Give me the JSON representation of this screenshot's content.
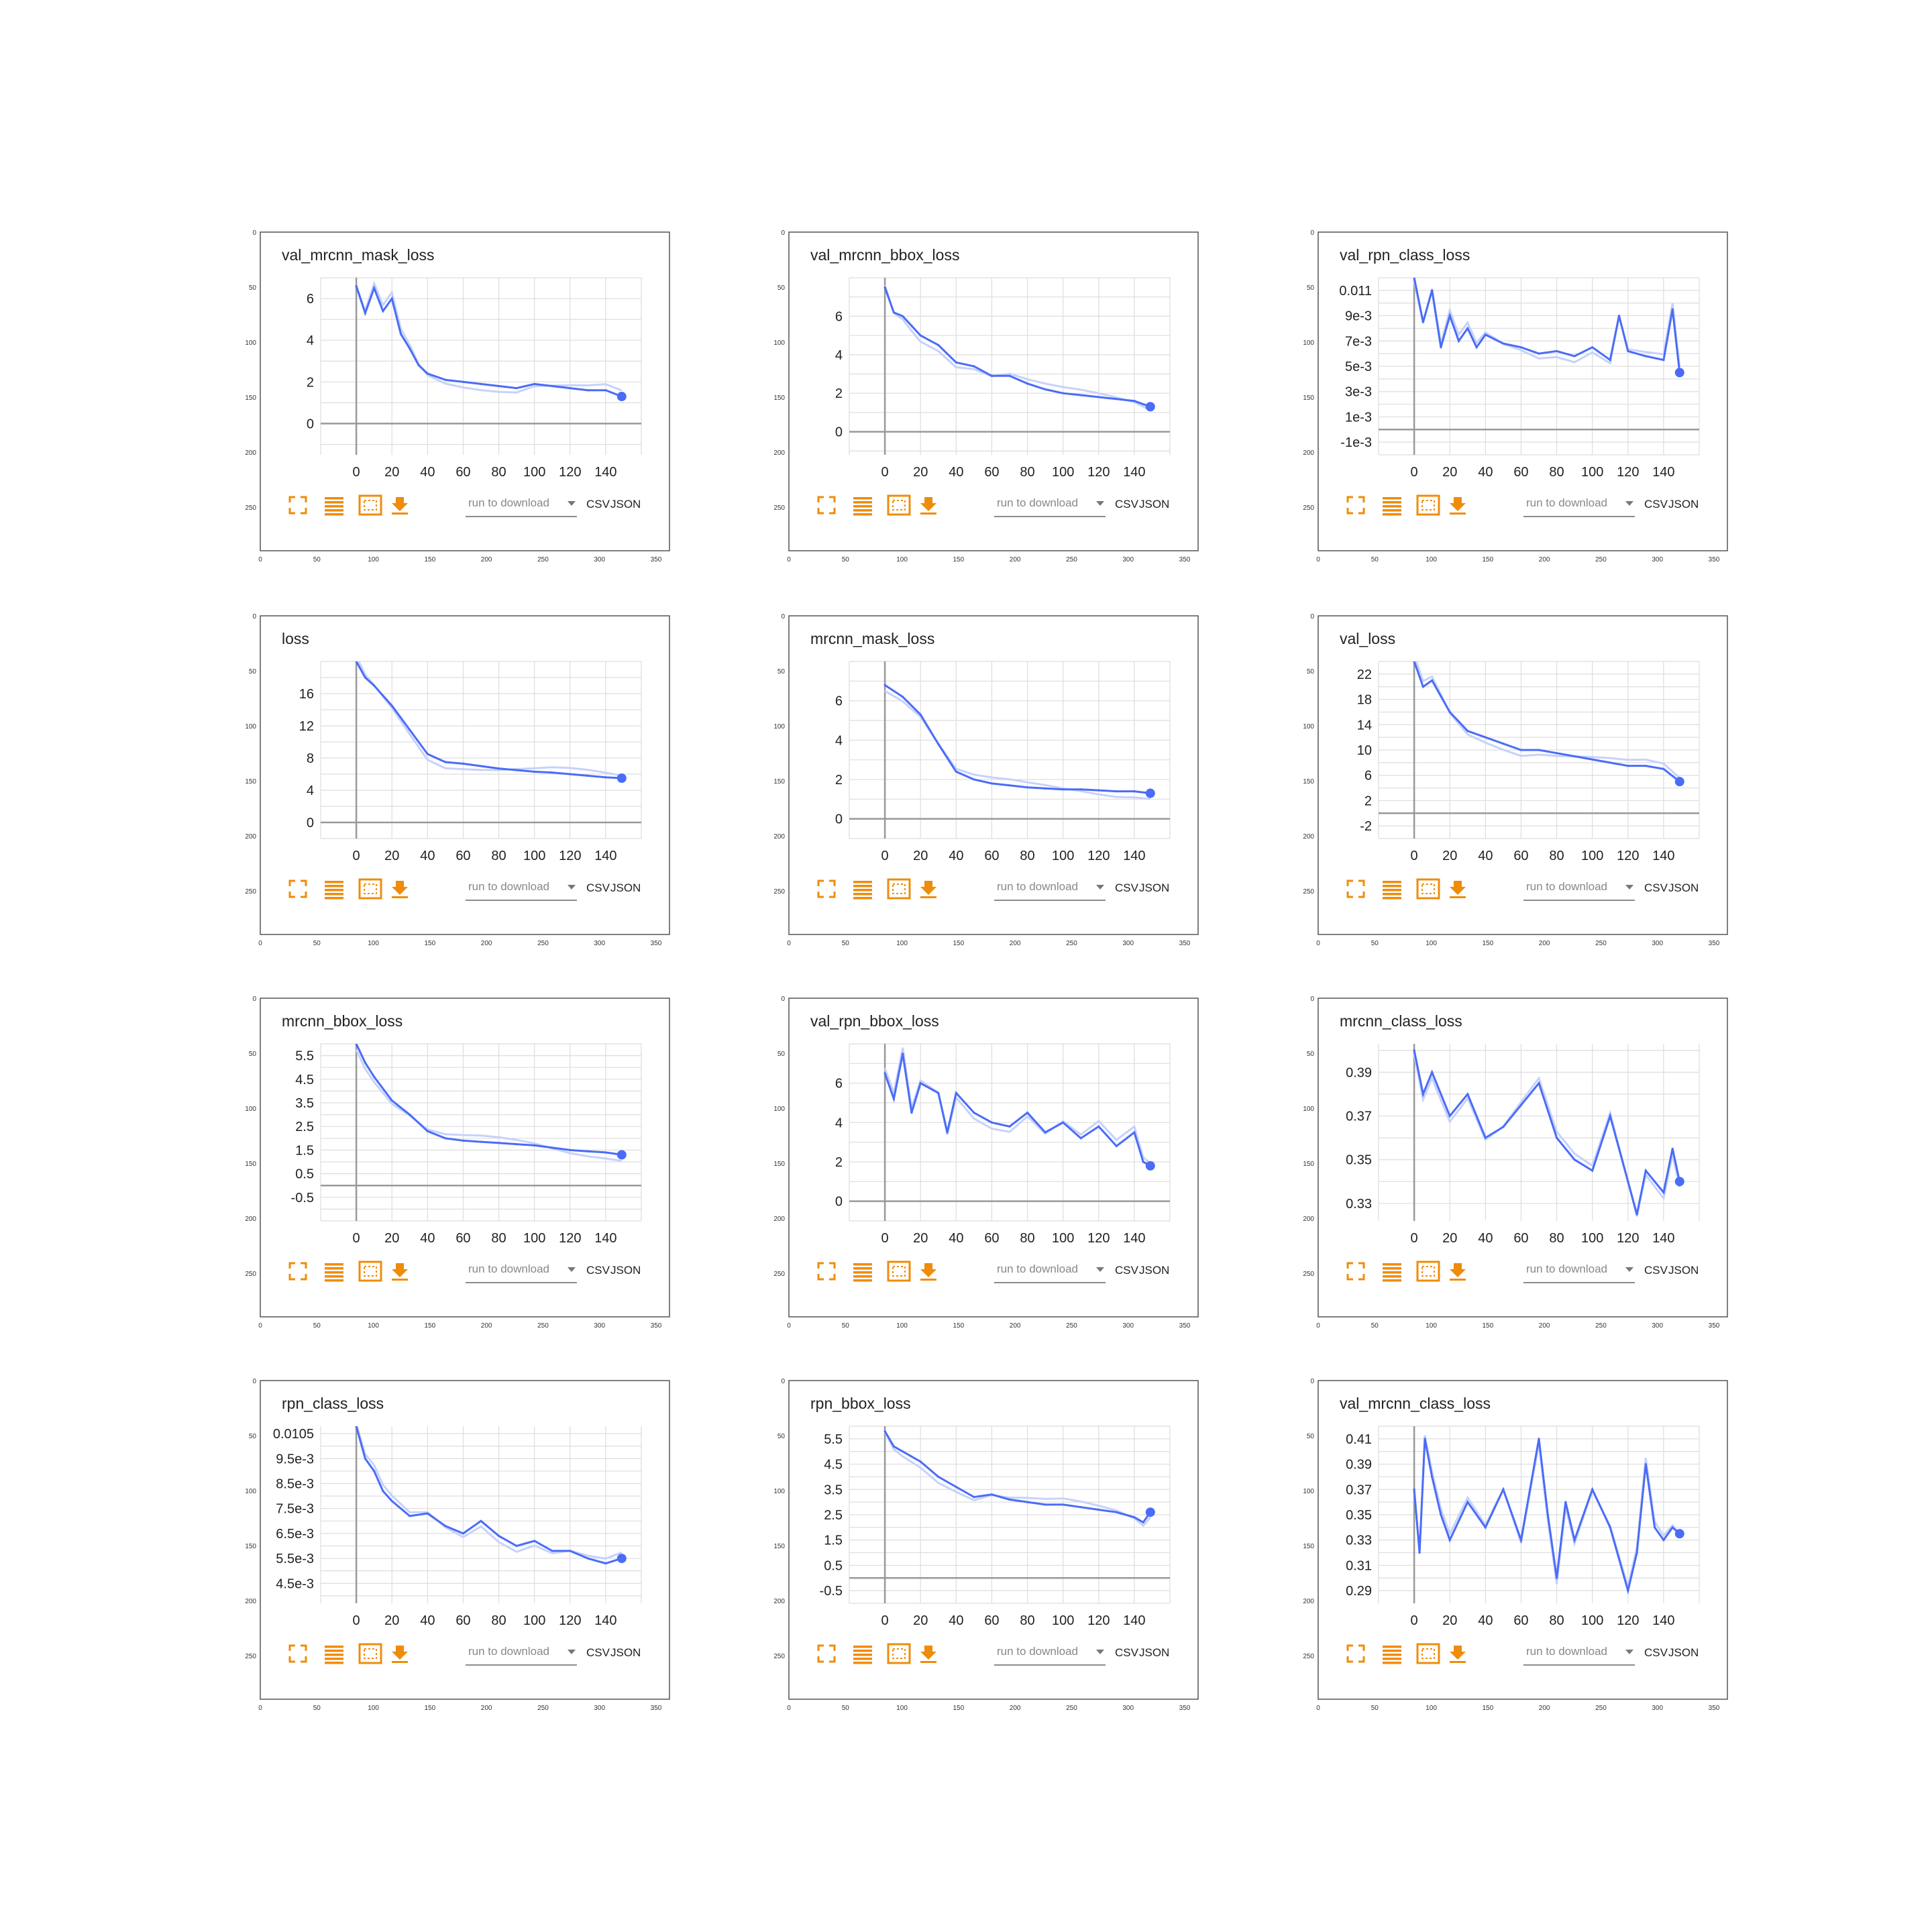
{
  "figure": {
    "outer_x_ticks": [
      "0",
      "50",
      "100",
      "150",
      "200",
      "250",
      "300",
      "350"
    ],
    "outer_y_ticks": [
      "0",
      "50",
      "100",
      "150",
      "200",
      "250"
    ],
    "download_placeholder": "run to download",
    "csv_label": "CSV",
    "json_label": "JSON",
    "icons": [
      "expand-icon",
      "lines-icon",
      "fit-domain-icon",
      "download-icon"
    ],
    "colors": {
      "line": "#4a6cf7",
      "line_faded": "#c6d2fb",
      "icon": "#ef8c0a",
      "grid": "#dddddd",
      "axis": "#999999"
    }
  },
  "chart_data": [
    {
      "type": "line",
      "title": "val_mrcnn_mask_loss",
      "xlim": [
        -20,
        160
      ],
      "ylim": [
        -1.5,
        7
      ],
      "yticks": [
        {
          "v": 0,
          "label": "0"
        },
        {
          "v": 2,
          "label": "2"
        },
        {
          "v": 4,
          "label": "4"
        },
        {
          "v": 6,
          "label": "6"
        }
      ],
      "xticks": [
        0,
        20,
        40,
        60,
        80,
        100,
        120,
        140
      ],
      "series": [
        {
          "x": [
            0,
            5,
            10,
            15,
            20,
            25,
            30,
            35,
            40,
            50,
            60,
            70,
            80,
            90,
            100,
            110,
            120,
            130,
            140,
            149
          ],
          "values": [
            6.6,
            5.3,
            6.5,
            5.4,
            6.0,
            4.3,
            3.6,
            2.8,
            2.4,
            2.1,
            2.0,
            1.9,
            1.8,
            1.7,
            1.9,
            1.8,
            1.7,
            1.6,
            1.6,
            1.3
          ]
        }
      ]
    },
    {
      "type": "line",
      "title": "val_mrcnn_bbox_loss",
      "xlim": [
        -20,
        160
      ],
      "ylim": [
        -1.2,
        8
      ],
      "yticks": [
        {
          "v": 0,
          "label": "0"
        },
        {
          "v": 2,
          "label": "2"
        },
        {
          "v": 4,
          "label": "4"
        },
        {
          "v": 6,
          "label": "6"
        }
      ],
      "xticks": [
        0,
        20,
        40,
        60,
        80,
        100,
        120,
        140
      ],
      "series": [
        {
          "x": [
            0,
            5,
            10,
            15,
            20,
            30,
            40,
            50,
            60,
            70,
            80,
            90,
            100,
            110,
            120,
            130,
            140,
            149
          ],
          "values": [
            7.5,
            6.2,
            6.0,
            5.5,
            5.0,
            4.5,
            3.6,
            3.4,
            2.9,
            2.9,
            2.5,
            2.2,
            2.0,
            1.9,
            1.8,
            1.7,
            1.6,
            1.3
          ]
        }
      ]
    },
    {
      "type": "line",
      "title": "val_rpn_class_loss",
      "xlim": [
        -20,
        160
      ],
      "ylim": [
        -0.002,
        0.012
      ],
      "yticks": [
        {
          "v": -0.001,
          "label": "-1e-3"
        },
        {
          "v": 0.001,
          "label": "1e-3"
        },
        {
          "v": 0.003,
          "label": "3e-3"
        },
        {
          "v": 0.005,
          "label": "5e-3"
        },
        {
          "v": 0.007,
          "label": "7e-3"
        },
        {
          "v": 0.009,
          "label": "9e-3"
        },
        {
          "v": 0.011,
          "label": "0.011"
        }
      ],
      "xticks": [
        0,
        20,
        40,
        60,
        80,
        100,
        120,
        140
      ],
      "series": [
        {
          "x": [
            0,
            5,
            10,
            15,
            20,
            25,
            30,
            35,
            40,
            50,
            60,
            70,
            80,
            90,
            100,
            110,
            115,
            120,
            130,
            140,
            145,
            149
          ],
          "values": [
            0.012,
            0.0085,
            0.011,
            0.0065,
            0.009,
            0.007,
            0.008,
            0.0065,
            0.0075,
            0.0068,
            0.0065,
            0.006,
            0.0062,
            0.0058,
            0.0065,
            0.0055,
            0.009,
            0.0062,
            0.0058,
            0.0055,
            0.0095,
            0.0045
          ]
        }
      ]
    },
    {
      "type": "line",
      "title": "loss",
      "xlim": [
        -20,
        160
      ],
      "ylim": [
        -2,
        20
      ],
      "yticks": [
        {
          "v": 0,
          "label": "0"
        },
        {
          "v": 4,
          "label": "4"
        },
        {
          "v": 8,
          "label": "8"
        },
        {
          "v": 12,
          "label": "12"
        },
        {
          "v": 16,
          "label": "16"
        }
      ],
      "xticks": [
        0,
        20,
        40,
        60,
        80,
        100,
        120,
        140
      ],
      "series": [
        {
          "x": [
            0,
            5,
            10,
            20,
            30,
            40,
            50,
            60,
            70,
            80,
            90,
            100,
            110,
            120,
            130,
            140,
            149
          ],
          "values": [
            20,
            18,
            17,
            14.5,
            11.5,
            8.5,
            7.5,
            7.3,
            7.0,
            6.7,
            6.5,
            6.3,
            6.2,
            6.0,
            5.8,
            5.6,
            5.5
          ]
        }
      ]
    },
    {
      "type": "line",
      "title": "mrcnn_mask_loss",
      "xlim": [
        -20,
        160
      ],
      "ylim": [
        -1,
        8
      ],
      "yticks": [
        {
          "v": 0,
          "label": "0"
        },
        {
          "v": 2,
          "label": "2"
        },
        {
          "v": 4,
          "label": "4"
        },
        {
          "v": 6,
          "label": "6"
        }
      ],
      "xticks": [
        0,
        20,
        40,
        60,
        80,
        100,
        120,
        140
      ],
      "series": [
        {
          "x": [
            0,
            10,
            20,
            30,
            40,
            50,
            60,
            70,
            80,
            90,
            100,
            110,
            120,
            130,
            140,
            149
          ],
          "values": [
            6.8,
            6.2,
            5.3,
            3.8,
            2.4,
            2.0,
            1.8,
            1.7,
            1.6,
            1.55,
            1.5,
            1.5,
            1.45,
            1.4,
            1.4,
            1.3
          ]
        }
      ]
    },
    {
      "type": "line",
      "title": "val_loss",
      "xlim": [
        -20,
        160
      ],
      "ylim": [
        -4,
        24
      ],
      "yticks": [
        {
          "v": -2,
          "label": "-2"
        },
        {
          "v": 2,
          "label": "2"
        },
        {
          "v": 6,
          "label": "6"
        },
        {
          "v": 10,
          "label": "10"
        },
        {
          "v": 14,
          "label": "14"
        },
        {
          "v": 18,
          "label": "18"
        },
        {
          "v": 22,
          "label": "22"
        }
      ],
      "xticks": [
        0,
        20,
        40,
        60,
        80,
        100,
        120,
        140
      ],
      "series": [
        {
          "x": [
            0,
            5,
            10,
            15,
            20,
            30,
            40,
            50,
            60,
            70,
            80,
            90,
            100,
            110,
            120,
            130,
            140,
            149
          ],
          "values": [
            24,
            20,
            21,
            18.5,
            16,
            13,
            12,
            11,
            10,
            10,
            9.5,
            9,
            8.5,
            8,
            7.5,
            7.5,
            7,
            5
          ]
        }
      ]
    },
    {
      "type": "line",
      "title": "mrcnn_bbox_loss",
      "xlim": [
        -20,
        160
      ],
      "ylim": [
        -1.5,
        6
      ],
      "yticks": [
        {
          "v": -0.5,
          "label": "-0.5"
        },
        {
          "v": 0.5,
          "label": "0.5"
        },
        {
          "v": 1.5,
          "label": "1.5"
        },
        {
          "v": 2.5,
          "label": "2.5"
        },
        {
          "v": 3.5,
          "label": "3.5"
        },
        {
          "v": 4.5,
          "label": "4.5"
        },
        {
          "v": 5.5,
          "label": "5.5"
        }
      ],
      "xticks": [
        0,
        20,
        40,
        60,
        80,
        100,
        120,
        140
      ],
      "series": [
        {
          "x": [
            0,
            5,
            10,
            20,
            30,
            40,
            50,
            60,
            70,
            80,
            90,
            100,
            110,
            120,
            130,
            140,
            149
          ],
          "values": [
            6,
            5.2,
            4.6,
            3.6,
            3.0,
            2.3,
            2.0,
            1.9,
            1.85,
            1.8,
            1.75,
            1.7,
            1.6,
            1.5,
            1.45,
            1.4,
            1.3
          ]
        }
      ]
    },
    {
      "type": "line",
      "title": "val_rpn_bbox_loss",
      "xlim": [
        -20,
        160
      ],
      "ylim": [
        -1,
        8
      ],
      "yticks": [
        {
          "v": 0,
          "label": "0"
        },
        {
          "v": 2,
          "label": "2"
        },
        {
          "v": 4,
          "label": "4"
        },
        {
          "v": 6,
          "label": "6"
        }
      ],
      "xticks": [
        0,
        20,
        40,
        60,
        80,
        100,
        120,
        140
      ],
      "series": [
        {
          "x": [
            0,
            5,
            10,
            15,
            20,
            30,
            35,
            40,
            50,
            60,
            70,
            80,
            90,
            100,
            110,
            120,
            130,
            140,
            145,
            149
          ],
          "values": [
            6.5,
            5.2,
            7.5,
            4.5,
            6.0,
            5.5,
            3.5,
            5.5,
            4.5,
            4.0,
            3.8,
            4.5,
            3.5,
            4.0,
            3.2,
            3.8,
            2.8,
            3.5,
            2.0,
            1.8
          ]
        }
      ]
    },
    {
      "type": "line",
      "title": "mrcnn_class_loss",
      "xlim": [
        -20,
        160
      ],
      "ylim": [
        0.322,
        0.403
      ],
      "yticks": [
        {
          "v": 0.33,
          "label": "0.33"
        },
        {
          "v": 0.35,
          "label": "0.35"
        },
        {
          "v": 0.37,
          "label": "0.37"
        },
        {
          "v": 0.39,
          "label": "0.39"
        }
      ],
      "xticks": [
        0,
        20,
        40,
        60,
        80,
        100,
        120,
        140
      ],
      "series": [
        {
          "x": [
            0,
            5,
            10,
            20,
            30,
            40,
            50,
            60,
            70,
            80,
            90,
            100,
            110,
            120,
            125,
            130,
            140,
            145,
            149
          ],
          "values": [
            0.4,
            0.38,
            0.39,
            0.37,
            0.38,
            0.36,
            0.365,
            0.375,
            0.385,
            0.36,
            0.35,
            0.345,
            0.37,
            0.34,
            0.325,
            0.345,
            0.335,
            0.355,
            0.34
          ]
        }
      ]
    },
    {
      "type": "line",
      "title": "rpn_class_loss",
      "xlim": [
        -20,
        160
      ],
      "ylim": [
        0.0037,
        0.0108
      ],
      "yticks": [
        {
          "v": 0.0045,
          "label": "4.5e-3"
        },
        {
          "v": 0.0055,
          "label": "5.5e-3"
        },
        {
          "v": 0.0065,
          "label": "6.5e-3"
        },
        {
          "v": 0.0075,
          "label": "7.5e-3"
        },
        {
          "v": 0.0085,
          "label": "8.5e-3"
        },
        {
          "v": 0.0095,
          "label": "9.5e-3"
        },
        {
          "v": 0.0105,
          "label": "0.0105"
        }
      ],
      "xticks": [
        0,
        20,
        40,
        60,
        80,
        100,
        120,
        140
      ],
      "series": [
        {
          "x": [
            0,
            5,
            10,
            15,
            20,
            30,
            40,
            50,
            60,
            70,
            80,
            90,
            100,
            110,
            120,
            130,
            140,
            149
          ],
          "values": [
            0.0108,
            0.0095,
            0.009,
            0.0082,
            0.0078,
            0.0072,
            0.0073,
            0.0068,
            0.0065,
            0.007,
            0.0064,
            0.006,
            0.0062,
            0.0058,
            0.0058,
            0.0055,
            0.0053,
            0.0055
          ]
        }
      ]
    },
    {
      "type": "line",
      "title": "rpn_bbox_loss",
      "xlim": [
        -20,
        160
      ],
      "ylim": [
        -1,
        6
      ],
      "yticks": [
        {
          "v": -0.5,
          "label": "-0.5"
        },
        {
          "v": 0.5,
          "label": "0.5"
        },
        {
          "v": 1.5,
          "label": "1.5"
        },
        {
          "v": 2.5,
          "label": "2.5"
        },
        {
          "v": 3.5,
          "label": "3.5"
        },
        {
          "v": 4.5,
          "label": "4.5"
        },
        {
          "v": 5.5,
          "label": "5.5"
        }
      ],
      "xticks": [
        0,
        20,
        40,
        60,
        80,
        100,
        120,
        140
      ],
      "series": [
        {
          "x": [
            0,
            5,
            10,
            20,
            30,
            40,
            50,
            60,
            70,
            80,
            90,
            100,
            110,
            120,
            130,
            140,
            145,
            149
          ],
          "values": [
            5.8,
            5.2,
            5.0,
            4.6,
            4.0,
            3.6,
            3.2,
            3.3,
            3.1,
            3.0,
            2.9,
            2.9,
            2.8,
            2.7,
            2.6,
            2.4,
            2.2,
            2.6
          ]
        }
      ]
    },
    {
      "type": "line",
      "title": "val_mrcnn_class_loss",
      "xlim": [
        -20,
        160
      ],
      "ylim": [
        0.28,
        0.42
      ],
      "yticks": [
        {
          "v": 0.29,
          "label": "0.29"
        },
        {
          "v": 0.31,
          "label": "0.31"
        },
        {
          "v": 0.33,
          "label": "0.33"
        },
        {
          "v": 0.35,
          "label": "0.35"
        },
        {
          "v": 0.37,
          "label": "0.37"
        },
        {
          "v": 0.39,
          "label": "0.39"
        },
        {
          "v": 0.41,
          "label": "0.41"
        }
      ],
      "xticks": [
        0,
        20,
        40,
        60,
        80,
        100,
        120,
        140
      ],
      "series": [
        {
          "x": [
            0,
            3,
            6,
            10,
            15,
            20,
            30,
            40,
            50,
            60,
            70,
            75,
            80,
            85,
            90,
            100,
            110,
            120,
            125,
            130,
            135,
            140,
            145,
            149
          ],
          "values": [
            0.37,
            0.32,
            0.41,
            0.38,
            0.35,
            0.33,
            0.36,
            0.34,
            0.37,
            0.33,
            0.41,
            0.35,
            0.3,
            0.36,
            0.33,
            0.37,
            0.34,
            0.29,
            0.32,
            0.39,
            0.34,
            0.33,
            0.34,
            0.335
          ]
        }
      ]
    }
  ]
}
